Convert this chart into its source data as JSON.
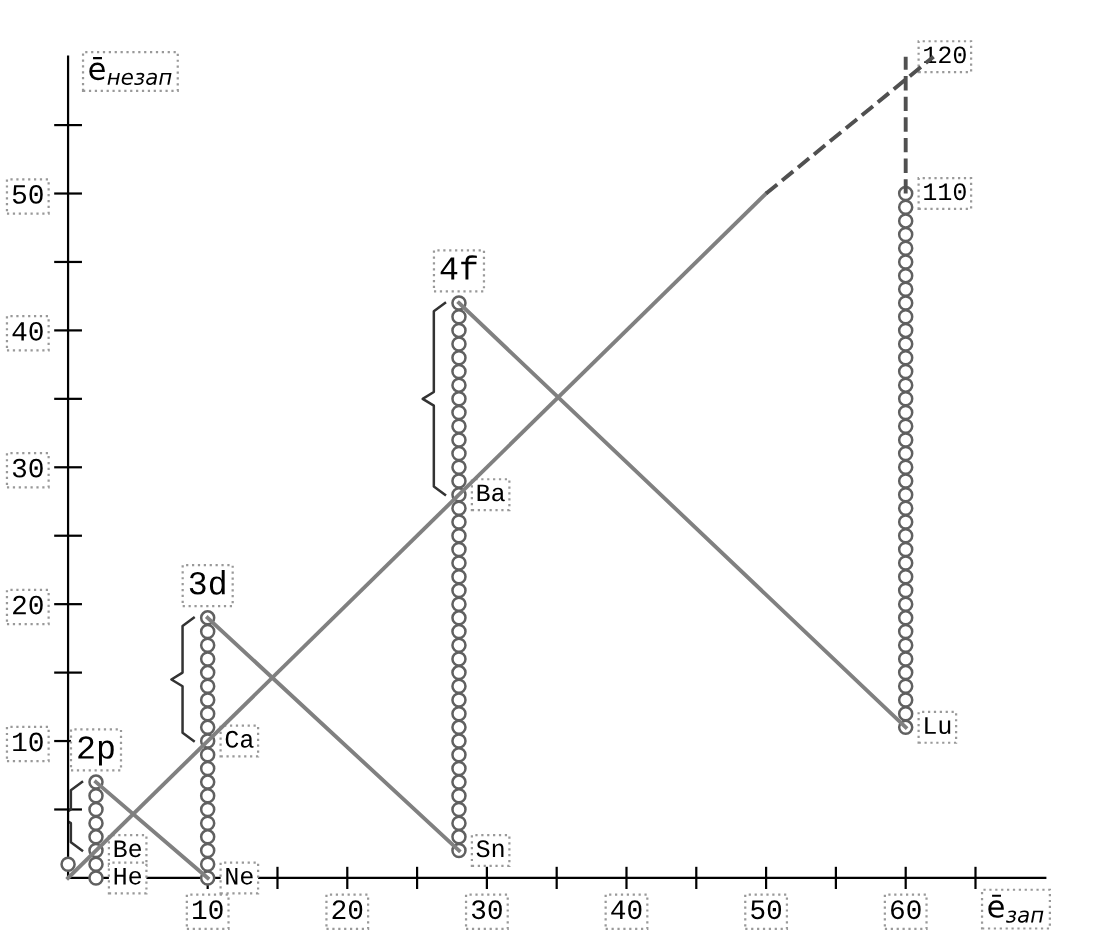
{
  "chart_data": {
    "type": "scatter",
    "xlabel": "ē$_{зап}$",
    "ylabel": "ē$_{незап}$",
    "xlim": [
      0,
      70
    ],
    "ylim": [
      0,
      60
    ],
    "xticks": [
      {
        "value": 5,
        "label": null
      },
      10,
      {
        "value": 15,
        "label": null
      },
      20,
      {
        "value": 25,
        "label": null
      },
      30,
      {
        "value": 35,
        "label": null
      },
      40,
      {
        "value": 45,
        "label": null
      },
      50,
      {
        "value": 55,
        "label": null
      },
      60,
      {
        "value": 65,
        "label": null
      }
    ],
    "yticks": [
      {
        "value": 5,
        "label": null
      },
      10,
      {
        "value": 15,
        "label": null
      },
      20,
      {
        "value": 25,
        "label": null
      },
      30,
      {
        "value": 35,
        "label": null
      },
      40,
      {
        "value": 45,
        "label": null
      },
      50,
      {
        "value": 55,
        "label": null
      }
    ],
    "grid": false,
    "series": [
      {
        "type": "line",
        "color": "#808080",
        "line_style": "solid",
        "marker": "none",
        "x": [
          0,
          50
        ],
        "values": [
          0,
          50
        ]
      },
      {
        "type": "line",
        "color": "#505050",
        "line_style": "dashed",
        "marker": "none",
        "x": [
          50,
          62
        ],
        "values": [
          50,
          60
        ]
      },
      {
        "type": "line",
        "color": "#505050",
        "line_style": "dashed",
        "marker": "none",
        "x": [
          60,
          60
        ],
        "values": [
          50,
          60
        ]
      },
      {
        "type": "line",
        "color": "#808080",
        "line_style": "solid",
        "marker": "none",
        "x": [
          2,
          10
        ],
        "values": [
          7,
          0
        ]
      },
      {
        "type": "line",
        "color": "#808080",
        "line_style": "solid",
        "marker": "none",
        "x": [
          10,
          28
        ],
        "values": [
          19,
          2
        ]
      },
      {
        "type": "line",
        "color": "#808080",
        "line_style": "solid",
        "marker": "none",
        "x": [
          28,
          60
        ],
        "values": [
          42,
          11
        ]
      },
      {
        "color": "#606060",
        "marker": "circle",
        "x": [
          0
        ],
        "values": [
          1
        ]
      },
      {
        "color": "#606060",
        "marker": "circle",
        "x": [
          2,
          2,
          2,
          2,
          2,
          2,
          2,
          2
        ],
        "values": [
          0,
          1,
          2,
          3,
          4,
          5,
          6,
          7
        ]
      },
      {
        "color": "#606060",
        "marker": "circle",
        "x": [
          10,
          10,
          10,
          10,
          10,
          10,
          10,
          10,
          10,
          10,
          10,
          10,
          10,
          10,
          10,
          10,
          10,
          10,
          10,
          10
        ],
        "values": [
          0,
          1,
          2,
          3,
          4,
          5,
          6,
          7,
          8,
          9,
          10,
          11,
          12,
          13,
          14,
          15,
          16,
          17,
          18,
          19
        ]
      },
      {
        "color": "#606060",
        "marker": "circle",
        "x": [
          28,
          28,
          28,
          28,
          28,
          28,
          28,
          28,
          28,
          28,
          28,
          28,
          28,
          28,
          28,
          28,
          28,
          28,
          28,
          28,
          28,
          28,
          28,
          28,
          28,
          28,
          28,
          28,
          28,
          28,
          28,
          28,
          28,
          28,
          28,
          28,
          28,
          28,
          28,
          28,
          28
        ],
        "values": [
          2,
          3,
          4,
          5,
          6,
          7,
          8,
          9,
          10,
          11,
          12,
          13,
          14,
          15,
          16,
          17,
          18,
          19,
          20,
          21,
          22,
          23,
          24,
          25,
          26,
          27,
          28,
          29,
          30,
          31,
          32,
          33,
          34,
          35,
          36,
          37,
          38,
          39,
          40,
          41,
          42
        ]
      },
      {
        "color": "#606060",
        "marker": "circle",
        "x": [
          60,
          60,
          60,
          60,
          60,
          60,
          60,
          60,
          60,
          60,
          60,
          60,
          60,
          60,
          60,
          60,
          60,
          60,
          60,
          60,
          60,
          60,
          60,
          60,
          60,
          60,
          60,
          60,
          60,
          60,
          60,
          60,
          60,
          60,
          60,
          60,
          60,
          60,
          60,
          60
        ],
        "values": [
          11,
          12,
          13,
          14,
          15,
          16,
          17,
          18,
          19,
          20,
          21,
          22,
          23,
          24,
          25,
          26,
          27,
          28,
          29,
          30,
          31,
          32,
          33,
          34,
          35,
          36,
          37,
          38,
          39,
          40,
          41,
          42,
          43,
          44,
          45,
          46,
          47,
          48,
          49,
          50
        ]
      }
    ],
    "annotations": [
      {
        "text": "He",
        "x": 2,
        "y": 0
      },
      {
        "text": "Be",
        "x": 2,
        "y": 2
      },
      {
        "text": "Ne",
        "x": 10,
        "y": 0
      },
      {
        "text": "Ca",
        "x": 10,
        "y": 10
      },
      {
        "text": "Sn",
        "x": 28,
        "y": 2
      },
      {
        "text": "Ba",
        "x": 28,
        "y": 28
      },
      {
        "text": "Lu",
        "x": 60,
        "y": 11
      },
      {
        "text": "110",
        "x": 60,
        "y": 50
      },
      {
        "text": "120",
        "x": 60,
        "y": 60
      },
      {
        "text": "2p",
        "x": 2,
        "y": 7
      },
      {
        "text": "3d",
        "x": 10,
        "y": 19
      },
      {
        "text": "4f",
        "x": 28,
        "y": 42
      }
    ]
  }
}
